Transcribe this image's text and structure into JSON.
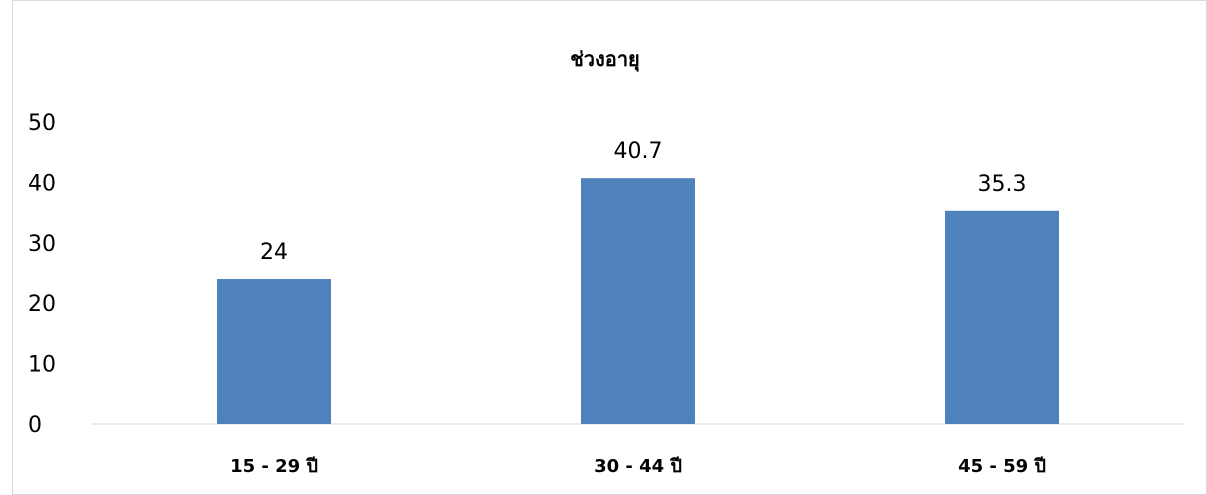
{
  "chart_data": {
    "type": "bar",
    "title": "ช่วงอายุ",
    "categories": [
      "15 - 29 ปี",
      "30 - 44 ปี",
      "45 - 59 ปี"
    ],
    "values": [
      24,
      40.7,
      35.3
    ],
    "data_labels": [
      "24",
      "40.7",
      "35.3"
    ],
    "yticks": [
      0,
      10,
      20,
      30,
      40,
      50
    ],
    "ylim": [
      0,
      50
    ],
    "xlabel": "",
    "ylabel": "",
    "grid": false,
    "legend": "none",
    "bar_color": "#4F81BD"
  }
}
